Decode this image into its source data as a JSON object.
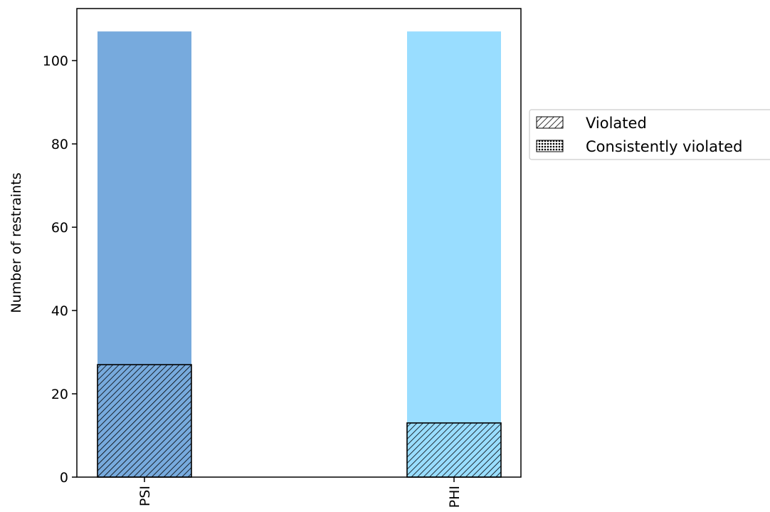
{
  "chart_data": {
    "type": "bar",
    "categories": [
      "PSI",
      "PHI"
    ],
    "series": [
      {
        "values": [
          107,
          107
        ],
        "colors": [
          "#77aadd",
          "#99ddff"
        ]
      },
      {
        "name": "Violated",
        "values": [
          27,
          13
        ],
        "hatch": "diagonal"
      },
      {
        "name": "Consistently violated",
        "values": [
          0,
          0
        ],
        "hatch": "dots"
      }
    ],
    "xlabel": "",
    "ylabel": "Number of restraints",
    "ylim": [
      0,
      112.5
    ],
    "yticks": [
      0,
      20,
      40,
      60,
      80,
      100
    ],
    "grid": false,
    "legend_position": "outside-right"
  }
}
